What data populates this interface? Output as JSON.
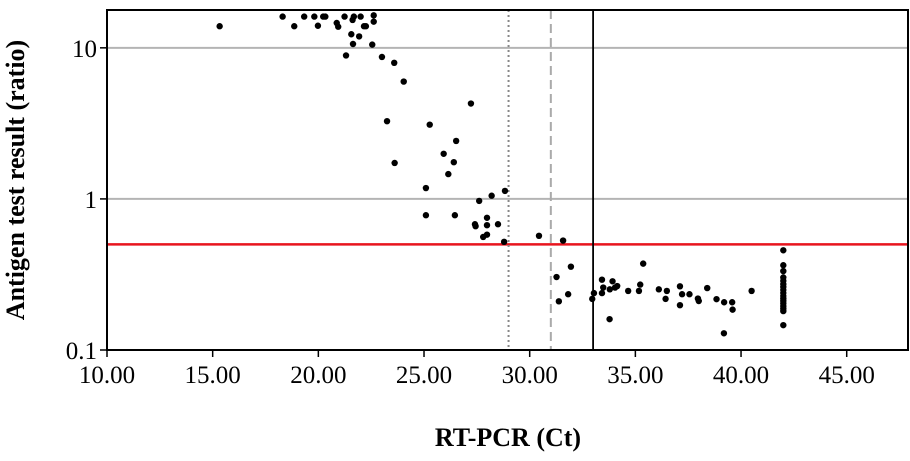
{
  "chart_data": {
    "type": "scatter",
    "title": "",
    "xlabel": "RT-PCR (Ct)",
    "ylabel": "Antigen test result (ratio)",
    "xlim": [
      10,
      47.9
    ],
    "ylim": [
      0.1,
      17.8
    ],
    "yscale": "log",
    "x_ticks": [
      10,
      15,
      20,
      25,
      30,
      35,
      40,
      45
    ],
    "x_tick_labels": [
      "10.00",
      "15.00",
      "20.00",
      "25.00",
      "30.00",
      "35.00",
      "40.00",
      "45.00"
    ],
    "y_ticks": [
      0.1,
      1,
      10
    ],
    "y_tick_labels": [
      "0.1",
      "1",
      "10"
    ],
    "grid": "horizontal at 1 and 10",
    "reference_lines": [
      {
        "orientation": "horizontal",
        "value": 0.5,
        "color": "#e8141e",
        "style": "solid"
      },
      {
        "orientation": "vertical",
        "value": 29,
        "color": "#888888",
        "style": "dotted"
      },
      {
        "orientation": "vertical",
        "value": 31,
        "color": "#aaaaaa",
        "style": "dashed"
      },
      {
        "orientation": "vertical",
        "value": 33,
        "color": "#000000",
        "style": "solid"
      }
    ],
    "point_color": "#000000",
    "points": [
      [
        15.33,
        13.9
      ],
      [
        18.31,
        16.1
      ],
      [
        18.86,
        13.9
      ],
      [
        19.33,
        16.1
      ],
      [
        19.81,
        16.1
      ],
      [
        19.98,
        14.0
      ],
      [
        20.23,
        16.1
      ],
      [
        20.33,
        16.1
      ],
      [
        20.87,
        14.6
      ],
      [
        20.94,
        13.8
      ],
      [
        21.24,
        16.1
      ],
      [
        21.68,
        16.1
      ],
      [
        21.62,
        15.3
      ],
      [
        22.0,
        16.1
      ],
      [
        22.16,
        13.9
      ],
      [
        22.25,
        13.9
      ],
      [
        22.62,
        16.4
      ],
      [
        22.62,
        14.9
      ],
      [
        21.56,
        12.3
      ],
      [
        21.93,
        11.9
      ],
      [
        21.64,
        10.6
      ],
      [
        22.55,
        10.5
      ],
      [
        21.31,
        8.9
      ],
      [
        23.01,
        8.7
      ],
      [
        23.59,
        7.96
      ],
      [
        24.04,
        5.98
      ],
      [
        23.25,
        3.27
      ],
      [
        27.22,
        4.28
      ],
      [
        25.27,
        3.1
      ],
      [
        26.52,
        2.42
      ],
      [
        25.93,
        1.99
      ],
      [
        26.41,
        1.75
      ],
      [
        23.61,
        1.73
      ],
      [
        26.15,
        1.46
      ],
      [
        25.09,
        1.18
      ],
      [
        28.83,
        1.13
      ],
      [
        28.2,
        1.05
      ],
      [
        27.61,
        0.97
      ],
      [
        25.09,
        0.78
      ],
      [
        26.46,
        0.78
      ],
      [
        27.98,
        0.75
      ],
      [
        27.41,
        0.68
      ],
      [
        27.44,
        0.66
      ],
      [
        27.98,
        0.67
      ],
      [
        28.5,
        0.68
      ],
      [
        27.98,
        0.58
      ],
      [
        27.8,
        0.56
      ],
      [
        28.79,
        0.52
      ],
      [
        30.44,
        0.57
      ],
      [
        31.58,
        0.53
      ],
      [
        31.95,
        0.356
      ],
      [
        31.27,
        0.304
      ],
      [
        31.82,
        0.234
      ],
      [
        31.38,
        0.21
      ],
      [
        32.96,
        0.218
      ],
      [
        33.04,
        0.238
      ],
      [
        33.42,
        0.292
      ],
      [
        33.42,
        0.238
      ],
      [
        33.48,
        0.259
      ],
      [
        33.79,
        0.252
      ],
      [
        33.92,
        0.285
      ],
      [
        34.04,
        0.259
      ],
      [
        34.14,
        0.265
      ],
      [
        33.78,
        0.16
      ],
      [
        34.66,
        0.246
      ],
      [
        35.17,
        0.246
      ],
      [
        35.23,
        0.271
      ],
      [
        35.37,
        0.373
      ],
      [
        36.11,
        0.252
      ],
      [
        36.49,
        0.246
      ],
      [
        36.43,
        0.218
      ],
      [
        37.11,
        0.264
      ],
      [
        37.21,
        0.234
      ],
      [
        37.11,
        0.198
      ],
      [
        37.56,
        0.234
      ],
      [
        37.96,
        0.219
      ],
      [
        38.0,
        0.211
      ],
      [
        38.4,
        0.257
      ],
      [
        38.84,
        0.217
      ],
      [
        39.2,
        0.207
      ],
      [
        39.58,
        0.207
      ],
      [
        39.6,
        0.185
      ],
      [
        39.19,
        0.129
      ],
      [
        40.5,
        0.246
      ],
      [
        42,
        0.457
      ],
      [
        42,
        0.364
      ],
      [
        42,
        0.333
      ],
      [
        42,
        0.302
      ],
      [
        42,
        0.287
      ],
      [
        42,
        0.273
      ],
      [
        42,
        0.261
      ],
      [
        42,
        0.25
      ],
      [
        42,
        0.239
      ],
      [
        42,
        0.228
      ],
      [
        42,
        0.219
      ],
      [
        42,
        0.211
      ],
      [
        42,
        0.203
      ],
      [
        42,
        0.195
      ],
      [
        42,
        0.188
      ],
      [
        42,
        0.181
      ],
      [
        42,
        0.146
      ]
    ]
  }
}
